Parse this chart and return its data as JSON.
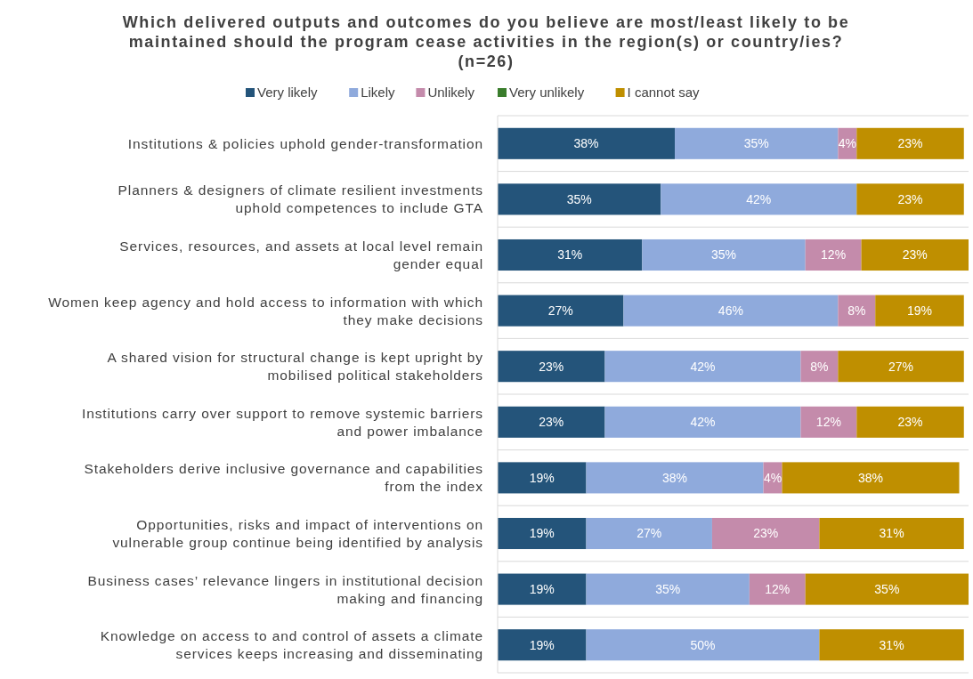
{
  "chart_data": {
    "type": "bar",
    "orientation": "horizontal",
    "stacked": true,
    "title": "Which delivered outputs and outcomes do you believe are most/least likely to be maintained should the program cease activities in the region(s) or country/ies?",
    "subtitle": "(n=26)",
    "categories": [
      "Institutions & policies uphold gender-transformation",
      "Planners & designers of climate resilient investments uphold competences to include GTA",
      "Services, resources, and assets at local level remain gender equal",
      "Women keep agency and hold access to information with which they make decisions",
      "A shared vision for structural change is kept upright by mobilised political stakeholders",
      "Institutions carry over support to remove systemic barriers and power imbalance",
      "Stakeholders derive inclusive governance and capabilities from the index",
      "Opportunities, risks and impact of interventions on vulnerable group continue being identified by analysis",
      "Business cases’ relevance lingers in institutional decision making and financing",
      "Knowledge on access to and control of assets a climate services keeps increasing and disseminating"
    ],
    "series": [
      {
        "name": "Very likely",
        "color": "#24547a",
        "values": [
          38,
          35,
          31,
          27,
          23,
          23,
          19,
          19,
          19,
          19
        ],
        "value_labels": [
          "38%",
          "35%",
          "31%",
          "27%",
          "23%",
          "23%",
          "19%",
          "19%",
          "19%",
          "19%"
        ]
      },
      {
        "name": "Likely",
        "color": "#8faadc",
        "values": [
          35,
          42,
          35,
          46,
          42,
          42,
          38,
          27,
          35,
          50
        ],
        "value_labels": [
          "35%",
          "42%",
          "35%",
          "46%",
          "42%",
          "42%",
          "38%",
          "27%",
          "35%",
          "50%"
        ]
      },
      {
        "name": "Unlikely",
        "color": "#c48bab",
        "values": [
          4,
          null,
          12,
          8,
          8,
          12,
          4,
          23,
          12,
          null
        ],
        "value_labels": [
          "4%",
          null,
          "12%",
          "8%",
          "8%",
          "12%",
          "4%",
          "23%",
          "12%",
          null
        ]
      },
      {
        "name": "Very unlikely",
        "color": "#3a7d2c",
        "values": [
          null,
          null,
          null,
          null,
          null,
          null,
          null,
          null,
          null,
          null
        ]
      },
      {
        "name": "I cannot say",
        "color": "#bf8f00",
        "values": [
          23,
          23,
          23,
          19,
          27,
          23,
          38,
          31,
          35,
          31
        ],
        "value_labels": [
          "23%",
          "23%",
          "23%",
          "19%",
          "27%",
          "23%",
          "38%",
          "31%",
          "35%",
          "31%"
        ]
      }
    ],
    "legend": "top",
    "grid": "y",
    "tick_labels": "y"
  }
}
